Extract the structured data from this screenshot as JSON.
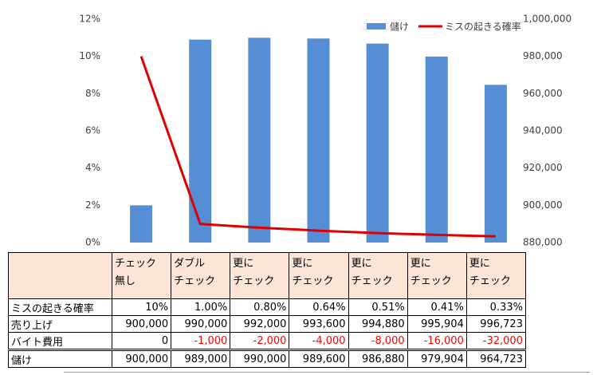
{
  "chart_data": {
    "type": "bar_line",
    "categories": [
      "チェック\n無し",
      "ダブル\nチェック",
      "更に\nチェック",
      "更に\nチェック",
      "更に\nチェック",
      "更に\nチェック",
      "更に\nチェック"
    ],
    "series": [
      {
        "name": "儲け",
        "type": "bar",
        "axis": "y2",
        "color": "#558ed5",
        "values": [
          900000,
          989000,
          990000,
          989600,
          986880,
          979904,
          964723
        ],
        "value_labels": [
          "900,000",
          "989,000",
          "990,000",
          "989,600",
          "986,880",
          "979,904",
          "964,723"
        ]
      },
      {
        "name": "ミスの起きる確率",
        "type": "line",
        "axis": "y",
        "color": "#e00000",
        "values": [
          10,
          1,
          0.8,
          0.64,
          0.51,
          0.41,
          0.33
        ],
        "value_labels": [
          "10%",
          "1.00%",
          "0.80%",
          "0.64%",
          "0.51%",
          "0.41%",
          "0.33%"
        ]
      }
    ],
    "table_rows": [
      {
        "name": "売り上げ",
        "values": [
          900000,
          990000,
          992000,
          993600,
          994880,
          995904,
          996723
        ],
        "value_labels": [
          "900,000",
          "990,000",
          "992,000",
          "993,600",
          "994,880",
          "995,904",
          "996,723"
        ]
      },
      {
        "name": "バイト費用",
        "values": [
          0,
          -1000,
          -2000,
          -4000,
          -8000,
          -16000,
          -32000
        ],
        "value_labels": [
          "0",
          "-1,000",
          "-2,000",
          "-4,000",
          "-8,000",
          "-16,000",
          "-32,000"
        ]
      }
    ],
    "negative_color": "#ff0000",
    "header_color": "#fce4d6",
    "ylim": [
      0,
      12
    ],
    "yticks": [
      {
        "value": 0,
        "label": "0%"
      },
      {
        "value": 2,
        "label": "2%"
      },
      {
        "value": 4,
        "label": "4%"
      },
      {
        "value": 6,
        "label": "6%"
      },
      {
        "value": 8,
        "label": "8%"
      },
      {
        "value": 10,
        "label": "10%"
      },
      {
        "value": 12,
        "label": "12%"
      }
    ],
    "y2lim": [
      880000,
      1000000
    ],
    "y2ticks": [
      {
        "value": 880000,
        "label": "880,000"
      },
      {
        "value": 900000,
        "label": "900,000"
      },
      {
        "value": 920000,
        "label": "920,000"
      },
      {
        "value": 940000,
        "label": "940,000"
      },
      {
        "value": 960000,
        "label": "960,000"
      },
      {
        "value": 980000,
        "label": "980,000"
      },
      {
        "value": 1000000,
        "label": "1,000,000"
      }
    ],
    "legend": "top-right"
  }
}
